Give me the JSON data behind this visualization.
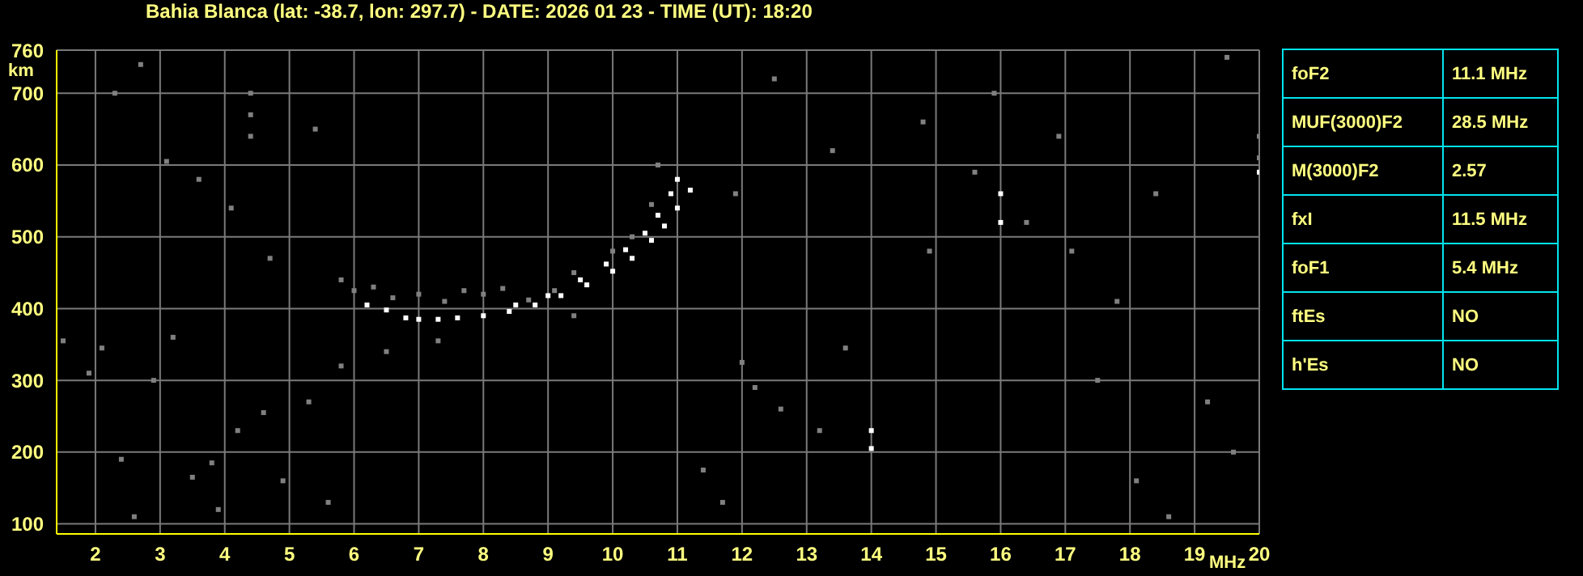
{
  "chart_data": [
    {
      "type": "scatter",
      "title": "Bahia Blanca (lat: -38.7, lon: 297.7) - DATE: 2026 01 23 - TIME (UT): 18:20",
      "xlabel": "MHz",
      "ylabel": "km",
      "xlim": [
        1.4,
        20
      ],
      "ylim": [
        86,
        760
      ],
      "xticks": [
        2,
        3,
        4,
        5,
        6,
        7,
        8,
        9,
        10,
        11,
        12,
        13,
        14,
        15,
        16,
        17,
        18,
        19,
        20
      ],
      "yticks": [
        100,
        200,
        300,
        400,
        500,
        600,
        700,
        760
      ],
      "grid": true,
      "marker": "square",
      "series": [
        {
          "color": "#ffffff",
          "x": [
            6.2,
            6.5,
            6.8,
            7.0,
            7.3,
            7.6,
            8.0,
            8.4,
            8.8,
            9.2,
            9.6,
            10.0,
            10.3,
            10.6,
            10.8,
            11.0,
            11.2
          ],
          "values": [
            405,
            398,
            387,
            385,
            385,
            387,
            390,
            396,
            405,
            418,
            433,
            452,
            470,
            495,
            515,
            540,
            565
          ]
        },
        {
          "color": "#ffffff",
          "x": [
            8.5,
            9.0,
            9.5,
            9.9,
            10.2,
            10.5,
            10.7,
            10.9,
            11.0,
            14.0,
            14.0,
            16.0,
            16.0,
            20.0
          ],
          "values": [
            405,
            418,
            440,
            462,
            482,
            505,
            530,
            560,
            580,
            230,
            205,
            560,
            520,
            590
          ]
        },
        {
          "color": "#808080",
          "x": [
            5.8,
            6.0,
            6.3,
            6.6,
            7.0,
            7.4,
            7.7,
            8.0,
            8.3,
            8.7,
            9.1,
            9.4,
            10.0,
            10.3,
            10.6,
            4.4,
            4.4,
            4.4,
            20.0,
            20.0
          ],
          "values": [
            440,
            425,
            430,
            415,
            420,
            410,
            425,
            420,
            428,
            412,
            425,
            450,
            480,
            500,
            545,
            700,
            670,
            640,
            640,
            610
          ]
        },
        {
          "color": "#808080",
          "x": [
            1.5,
            1.9,
            2.1,
            2.4,
            2.6,
            2.9,
            3.2,
            3.5,
            3.8,
            3.9,
            4.2,
            4.6,
            4.9,
            5.3,
            5.6,
            5.8,
            2.3,
            2.7,
            3.1,
            3.6,
            4.1,
            4.7,
            5.4,
            6.5,
            7.3,
            9.4,
            10.7,
            11.4,
            11.7,
            12.0,
            12.2,
            12.6,
            13.2,
            13.6,
            14.9,
            15.6,
            16.4,
            17.1,
            17.5,
            18.1,
            18.6,
            19.2,
            19.6,
            12.5,
            13.4,
            14.8,
            15.9,
            16.9,
            18.4,
            19.5,
            17.8,
            11.9
          ],
          "values": [
            355,
            310,
            345,
            190,
            110,
            300,
            360,
            165,
            185,
            120,
            230,
            255,
            160,
            270,
            130,
            320,
            700,
            740,
            605,
            580,
            540,
            470,
            650,
            340,
            355,
            390,
            600,
            175,
            130,
            325,
            290,
            260,
            230,
            345,
            480,
            590,
            520,
            480,
            300,
            160,
            110,
            270,
            200,
            720,
            620,
            660,
            700,
            640,
            560,
            750,
            410,
            560
          ]
        }
      ]
    },
    {
      "type": "other",
      "categories": [
        "foF2",
        "MUF(3000)F2",
        "M(3000)F2",
        "fxI",
        "foF1",
        "ftEs",
        "h'Es"
      ],
      "value_labels": [
        "11.1 MHz",
        "28.5 MHz",
        "2.57",
        "11.5 MHz",
        "5.4 MHz",
        "NO",
        "NO"
      ]
    }
  ]
}
